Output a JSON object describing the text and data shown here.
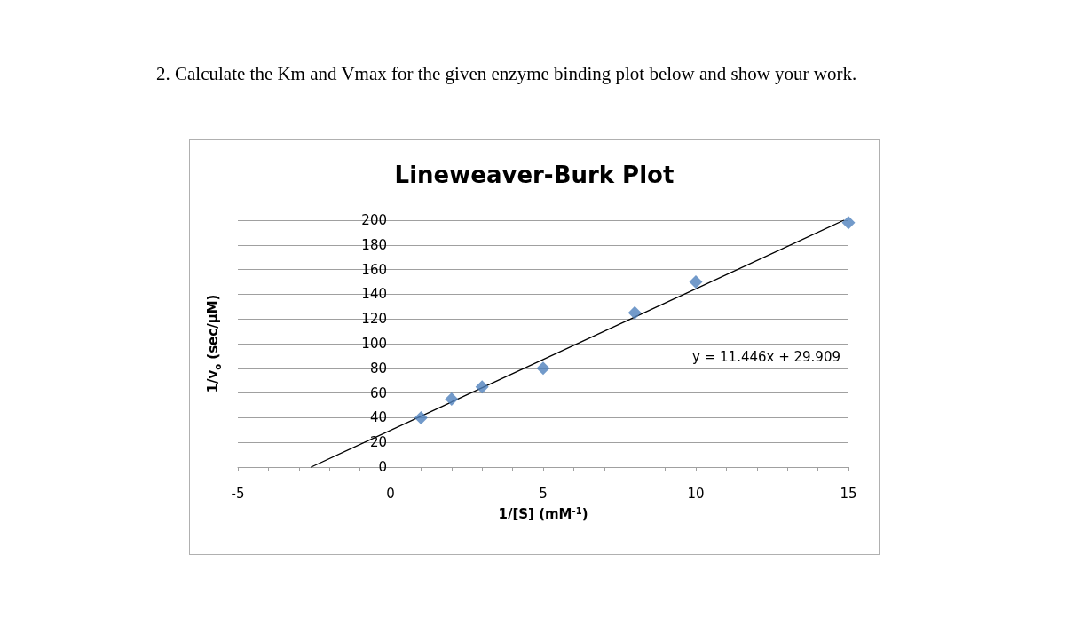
{
  "chart_data": {
    "type": "scatter",
    "title": "Lineweaver-Burk Plot",
    "xlabel": "1/[S] (mM$^{-1}$)",
    "ylabel": "1/v$_{o}$ (sec/µM)",
    "annotations": [
      "2. Calculate the Km and Vmax for the given enzyme binding plot below and show your work.",
      "y = 11.446x + 29.909"
    ],
    "xlim": [
      -5,
      15
    ],
    "xticks": [
      -5,
      {
        "value": -4,
        "label": null
      },
      {
        "value": -3,
        "label": null
      },
      {
        "value": -2,
        "label": null
      },
      {
        "value": -1,
        "label": null
      },
      0,
      {
        "value": 1,
        "label": null
      },
      {
        "value": 2,
        "label": null
      },
      {
        "value": 3,
        "label": null
      },
      {
        "value": 4,
        "label": null
      },
      5,
      {
        "value": 6,
        "label": null
      },
      {
        "value": 7,
        "label": null
      },
      {
        "value": 8,
        "label": null
      },
      {
        "value": 9,
        "label": null
      },
      10,
      {
        "value": 11,
        "label": null
      },
      {
        "value": 12,
        "label": null
      },
      {
        "value": 13,
        "label": null
      },
      {
        "value": 14,
        "label": null
      },
      15
    ],
    "ylim": [
      0,
      200
    ],
    "yticks": [
      0,
      20,
      40,
      60,
      80,
      100,
      120,
      140,
      160,
      180,
      200
    ],
    "grid": "y",
    "series": [
      {
        "type": "scatter",
        "marker": "diamond",
        "color": "#4f81bd",
        "x": [
          1,
          2,
          3,
          5,
          8,
          10,
          15
        ],
        "values": [
          40,
          55,
          65,
          80,
          125,
          150,
          198
        ]
      },
      {
        "type": "line",
        "marker": "none",
        "line_style": "solid",
        "color": "#000000",
        "x": [
          -2.6,
          14.85
        ],
        "values": [
          0,
          200
        ]
      }
    ]
  }
}
